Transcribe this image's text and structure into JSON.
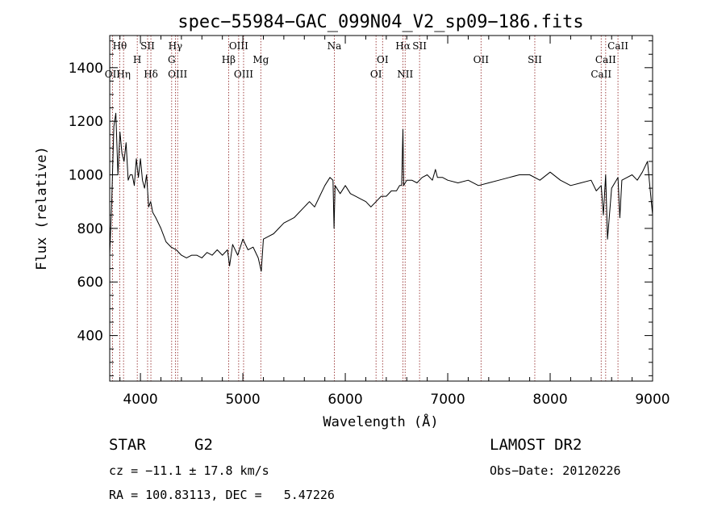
{
  "chart_data": {
    "type": "line",
    "title": "spec−55984−GAC_099N04_V2_sp09−186.fits",
    "xlabel": "Wavelength (Å)",
    "ylabel": "Flux (relative)",
    "xlim": [
      3700,
      9000
    ],
    "ylim": [
      230,
      1520
    ],
    "x_ticks": [
      4000,
      5000,
      6000,
      7000,
      8000,
      9000
    ],
    "y_ticks": [
      400,
      600,
      800,
      1000,
      1200,
      1400
    ],
    "grid": false,
    "series": [
      {
        "color": "#000000",
        "x": [
          3700,
          3720,
          3740,
          3760,
          3780,
          3800,
          3820,
          3840,
          3860,
          3880,
          3900,
          3920,
          3940,
          3960,
          3980,
          4000,
          4020,
          4040,
          4060,
          4080,
          4100,
          4120,
          4150,
          4200,
          4250,
          4300,
          4350,
          4400,
          4450,
          4500,
          4550,
          4600,
          4650,
          4700,
          4750,
          4800,
          4850,
          4870,
          4900,
          4950,
          5000,
          5050,
          5100,
          5150,
          5180,
          5200,
          5250,
          5300,
          5350,
          5400,
          5450,
          5500,
          5550,
          5600,
          5650,
          5700,
          5750,
          5800,
          5850,
          5880,
          5890,
          5900,
          5950,
          6000,
          6050,
          6100,
          6150,
          6200,
          6250,
          6300,
          6350,
          6400,
          6450,
          6500,
          6530,
          6550,
          6563,
          6570,
          6600,
          6650,
          6700,
          6750,
          6800,
          6850,
          6880,
          6900,
          6950,
          7000,
          7100,
          7200,
          7300,
          7400,
          7500,
          7600,
          7700,
          7800,
          7900,
          8000,
          8100,
          8200,
          8300,
          8400,
          8450,
          8498,
          8520,
          8542,
          8560,
          8600,
          8662,
          8680,
          8700,
          8750,
          8800,
          8850,
          8900,
          8950,
          9000
        ],
        "y": [
          700,
          900,
          1180,
          1230,
          1000,
          1160,
          1080,
          1050,
          1120,
          980,
          1000,
          1000,
          960,
          1060,
          990,
          1060,
          980,
          950,
          1000,
          880,
          900,
          860,
          840,
          800,
          750,
          730,
          720,
          700,
          690,
          700,
          700,
          690,
          710,
          700,
          720,
          700,
          720,
          660,
          740,
          700,
          760,
          720,
          730,
          690,
          640,
          760,
          770,
          780,
          800,
          820,
          830,
          840,
          860,
          880,
          900,
          880,
          920,
          960,
          990,
          980,
          800,
          960,
          930,
          960,
          930,
          920,
          910,
          900,
          880,
          900,
          920,
          920,
          940,
          940,
          960,
          960,
          1170,
          960,
          980,
          980,
          970,
          990,
          1000,
          980,
          1020,
          990,
          990,
          980,
          970,
          980,
          960,
          970,
          980,
          990,
          1000,
          1000,
          980,
          1010,
          980,
          960,
          970,
          980,
          940,
          960,
          850,
          1000,
          760,
          950,
          990,
          840,
          980,
          990,
          1000,
          980,
          1010,
          1050,
          850
        ]
      }
    ],
    "line_markers": [
      {
        "name": "Hθ",
        "x": 3798,
        "row": 0
      },
      {
        "name": "OII",
        "x": 3727,
        "row": 2
      },
      {
        "name": "Hη",
        "x": 3835,
        "row": 2
      },
      {
        "name": "H",
        "x": 3969,
        "row": 1
      },
      {
        "name": "SII",
        "x": 4070,
        "row": 0
      },
      {
        "name": "Hδ",
        "x": 4102,
        "row": 2
      },
      {
        "name": "Hγ",
        "x": 4341,
        "row": 0
      },
      {
        "name": "G",
        "x": 4305,
        "row": 1
      },
      {
        "name": "OIII",
        "x": 4363,
        "row": 2
      },
      {
        "name": "OIII",
        "x": 4959,
        "row": 0
      },
      {
        "name": "Hβ",
        "x": 4861,
        "row": 1
      },
      {
        "name": "OIII",
        "x": 5007,
        "row": 2
      },
      {
        "name": "Mg",
        "x": 5175,
        "row": 1
      },
      {
        "name": "Na",
        "x": 5893,
        "row": 0
      },
      {
        "name": "OI",
        "x": 6364,
        "row": 1
      },
      {
        "name": "OI",
        "x": 6300,
        "row": 2
      },
      {
        "name": "Hα",
        "x": 6563,
        "row": 0
      },
      {
        "name": "SII",
        "x": 6725,
        "row": 0
      },
      {
        "name": "NII",
        "x": 6584,
        "row": 2
      },
      {
        "name": "OII",
        "x": 7325,
        "row": 1
      },
      {
        "name": "SII",
        "x": 7850,
        "row": 1
      },
      {
        "name": "CaII",
        "x": 8662,
        "row": 0
      },
      {
        "name": "CaII",
        "x": 8542,
        "row": 1
      },
      {
        "name": "CaII",
        "x": 8498,
        "row": 2
      }
    ]
  },
  "info": {
    "object_class": "STAR",
    "subclass": "G2",
    "survey": "LAMOST DR2",
    "redshift": "cz = −11.1 ± 17.8 km/s",
    "obs_date": "Obs−Date: 20120226",
    "coords": "RA = 100.83113, DEC =   5.47226"
  }
}
